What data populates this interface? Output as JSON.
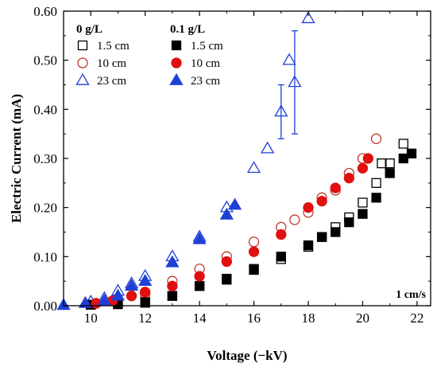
{
  "chart_data": {
    "type": "scatter",
    "xlabel": "Voltage (−kV)",
    "ylabel": "Electric Current (mA)",
    "xlim": [
      9,
      22.5
    ],
    "ylim": [
      0,
      0.6
    ],
    "x_ticks": [
      10,
      12,
      14,
      16,
      18,
      20,
      22
    ],
    "y_ticks": [
      0.0,
      0.1,
      0.2,
      0.3,
      0.4,
      0.5,
      0.6
    ],
    "x_tick_labels": [
      "10",
      "12",
      "14",
      "16",
      "18",
      "20",
      "22"
    ],
    "y_tick_labels": [
      "0.00",
      "0.10",
      "0.20",
      "0.30",
      "0.40",
      "0.50",
      "0.60"
    ],
    "grid": false,
    "annotation": "1 cm/s",
    "legend": {
      "placement": "top-left",
      "groups": [
        {
          "header": "0 g/L",
          "entries": [
            {
              "label": "1.5 cm",
              "marker": "square",
              "filled": false,
              "color": "#000000"
            },
            {
              "label": "10 cm",
              "marker": "circle",
              "filled": false,
              "color": "#c0392b"
            },
            {
              "label": "23 cm",
              "marker": "triangle",
              "filled": false,
              "color": "#1f3fd6"
            }
          ]
        },
        {
          "header": "0.1 g/L",
          "entries": [
            {
              "label": "1.5 cm",
              "marker": "square",
              "filled": true,
              "color": "#000000"
            },
            {
              "label": "10 cm",
              "marker": "circle",
              "filled": true,
              "color": "#e01010"
            },
            {
              "label": "23 cm",
              "marker": "triangle",
              "filled": true,
              "color": "#1f3fd6"
            }
          ]
        }
      ]
    },
    "series": [
      {
        "name": "0 g/L — 1.5 cm",
        "marker": "square",
        "filled": false,
        "color": "#000000",
        "points": [
          [
            10.0,
            0.002
          ],
          [
            11.0,
            0.004
          ],
          [
            12.0,
            0.008
          ],
          [
            13.0,
            0.02
          ],
          [
            14.0,
            0.04
          ],
          [
            15.0,
            0.055
          ],
          [
            16.0,
            0.075
          ],
          [
            17.0,
            0.095
          ],
          [
            18.0,
            0.12
          ],
          [
            18.5,
            0.14
          ],
          [
            19.0,
            0.16
          ],
          [
            19.5,
            0.18
          ],
          [
            20.0,
            0.21
          ],
          [
            20.5,
            0.25
          ],
          [
            20.7,
            0.29
          ],
          [
            21.0,
            0.29
          ],
          [
            21.5,
            0.33
          ]
        ]
      },
      {
        "name": "0 g/L — 10 cm",
        "marker": "circle",
        "filled": false,
        "color": "#c0392b",
        "points": [
          [
            10.2,
            0.005
          ],
          [
            10.8,
            0.01
          ],
          [
            11.5,
            0.02
          ],
          [
            12.0,
            0.025
          ],
          [
            13.0,
            0.05
          ],
          [
            14.0,
            0.075
          ],
          [
            15.0,
            0.1
          ],
          [
            16.0,
            0.13
          ],
          [
            17.0,
            0.16
          ],
          [
            17.5,
            0.175
          ],
          [
            18.0,
            0.19
          ],
          [
            18.5,
            0.22
          ],
          [
            19.0,
            0.235
          ],
          [
            19.5,
            0.27
          ],
          [
            20.0,
            0.3
          ],
          [
            20.5,
            0.34
          ]
        ]
      },
      {
        "name": "0 g/L — 23 cm",
        "marker": "triangle",
        "filled": false,
        "color": "#1f3fd6",
        "points": [
          [
            10.0,
            0.008
          ],
          [
            10.5,
            0.015
          ],
          [
            11.0,
            0.03
          ],
          [
            11.5,
            0.045
          ],
          [
            12.0,
            0.06
          ],
          [
            13.0,
            0.1
          ],
          [
            14.0,
            0.14
          ],
          [
            15.0,
            0.2
          ],
          [
            16.0,
            0.28
          ],
          [
            16.5,
            0.32
          ],
          [
            17.0,
            0.395
          ],
          [
            17.3,
            0.5
          ],
          [
            17.5,
            0.455
          ],
          [
            18.0,
            0.585
          ]
        ],
        "error_bars": [
          [
            17.0,
            0.395,
            0.055
          ],
          [
            17.5,
            0.455,
            0.105
          ]
        ]
      },
      {
        "name": "0.1 g/L — 1.5 cm",
        "marker": "square",
        "filled": true,
        "color": "#000000",
        "points": [
          [
            10.0,
            0.002
          ],
          [
            11.0,
            0.003
          ],
          [
            12.0,
            0.006
          ],
          [
            13.0,
            0.02
          ],
          [
            14.0,
            0.04
          ],
          [
            15.0,
            0.053
          ],
          [
            16.0,
            0.073
          ],
          [
            17.0,
            0.1
          ],
          [
            18.0,
            0.123
          ],
          [
            18.5,
            0.14
          ],
          [
            19.0,
            0.15
          ],
          [
            19.5,
            0.17
          ],
          [
            20.0,
            0.187
          ],
          [
            20.5,
            0.22
          ],
          [
            21.0,
            0.27
          ],
          [
            21.5,
            0.3
          ],
          [
            21.8,
            0.31
          ]
        ]
      },
      {
        "name": "0.1 g/L — 10 cm",
        "marker": "circle",
        "filled": true,
        "color": "#e01010",
        "points": [
          [
            10.2,
            0.005
          ],
          [
            10.8,
            0.01
          ],
          [
            11.5,
            0.02
          ],
          [
            12.0,
            0.028
          ],
          [
            13.0,
            0.04
          ],
          [
            14.0,
            0.06
          ],
          [
            15.0,
            0.09
          ],
          [
            16.0,
            0.11
          ],
          [
            17.0,
            0.145
          ],
          [
            18.0,
            0.2
          ],
          [
            18.5,
            0.213
          ],
          [
            19.0,
            0.24
          ],
          [
            19.5,
            0.26
          ],
          [
            20.0,
            0.28
          ],
          [
            20.2,
            0.3
          ]
        ]
      },
      {
        "name": "0.1 g/L — 23 cm",
        "marker": "triangle",
        "filled": true,
        "color": "#1f3fd6",
        "points": [
          [
            9.0,
            0.001
          ],
          [
            9.8,
            0.005
          ],
          [
            10.5,
            0.01
          ],
          [
            11.0,
            0.02
          ],
          [
            11.5,
            0.04
          ],
          [
            12.0,
            0.05
          ],
          [
            13.0,
            0.088
          ],
          [
            14.0,
            0.135
          ],
          [
            15.0,
            0.185
          ],
          [
            15.3,
            0.205
          ]
        ]
      }
    ]
  }
}
